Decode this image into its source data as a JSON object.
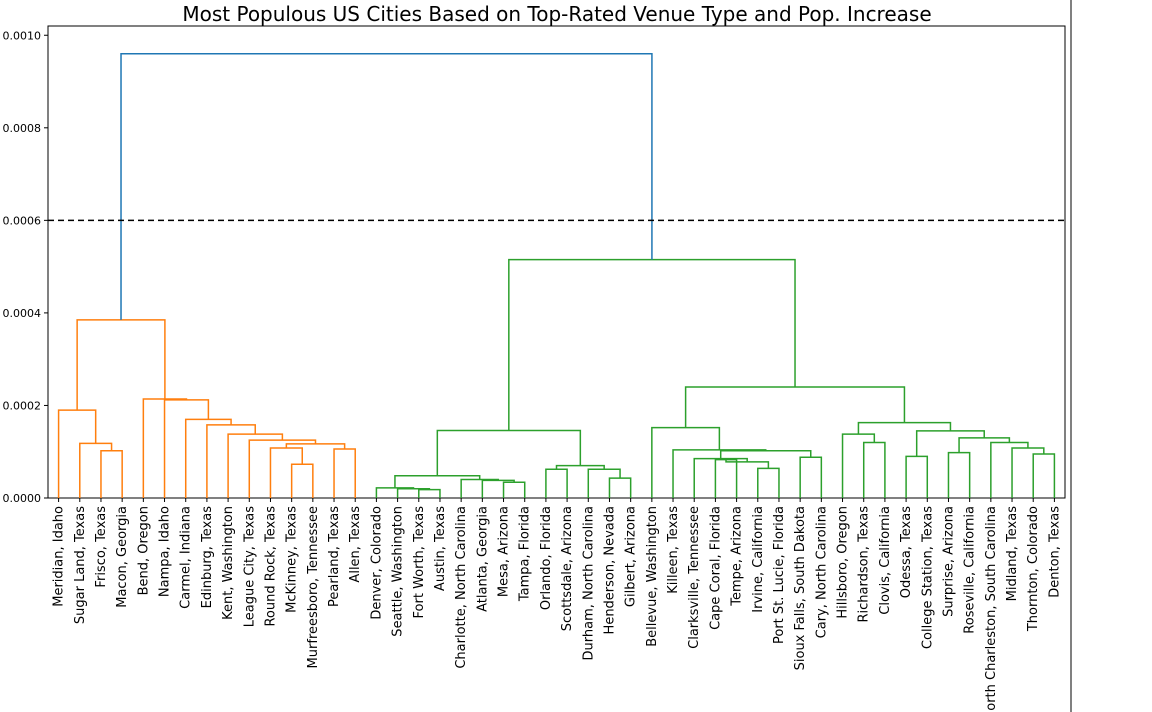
{
  "chart_data": {
    "type": "dendrogram",
    "title": "Most Populous US Cities Based on Top-Rated Venue Type and Pop. Increase",
    "xlabel": "",
    "ylabel": "",
    "ylim": [
      0,
      0.00102
    ],
    "yticks": [
      "0.0000",
      "0.0002",
      "0.0004",
      "0.0006",
      "0.0008",
      "0.0010"
    ],
    "ytick_values": [
      0,
      0.0002,
      0.0004,
      0.0006,
      0.0008,
      0.001
    ],
    "threshold": 0.0006,
    "threshold_style": "dashed black",
    "grid": false,
    "colors": {
      "root": "#1f77b4",
      "cluster1": "#ff7f0e",
      "cluster2": "#2ca02c",
      "threshold": "#000000"
    },
    "leaves": [
      "Meridian, Idaho",
      "Sugar Land, Texas",
      "Frisco, Texas",
      "Macon, Georgia",
      "Bend, Oregon",
      "Nampa, Idaho",
      "Carmel, Indiana",
      "Edinburg, Texas",
      "Kent, Washington",
      "League City, Texas",
      "Round Rock, Texas",
      "McKinney, Texas",
      "Murfreesboro, Tennessee",
      "Pearland, Texas",
      "Allen, Texas",
      "Denver, Colorado",
      "Seattle, Washington",
      "Fort Worth, Texas",
      "Austin, Texas",
      "Charlotte, North Carolina",
      "Atlanta, Georgia",
      "Mesa, Arizona",
      "Tampa, Florida",
      "Orlando, Florida",
      "Scottsdale, Arizona",
      "Durham, North Carolina",
      "Henderson, Nevada",
      "Gilbert, Arizona",
      "Bellevue, Washington",
      "Killeen, Texas",
      "Clarksville, Tennessee",
      "Cape Coral, Florida",
      "Tempe, Arizona",
      "Irvine, California",
      "Port St. Lucie, Florida",
      "Sioux Falls, South Dakota",
      "Cary, North Carolina",
      "Hillsboro, Oregon",
      "Richardson, Texas",
      "Clovis, California",
      "Odessa, Texas",
      "College Station, Texas",
      "Surprise, Arizona",
      "Roseville, California",
      "North Charleston, South Carolina",
      "Midland, Texas",
      "Thornton, Colorado",
      "Denton, Texas"
    ],
    "merges": [
      {
        "l": 2,
        "r": 3,
        "h": 0.000102,
        "c": "cluster1"
      },
      {
        "l": 1,
        "r": "m0",
        "h": 0.000118,
        "c": "cluster1"
      },
      {
        "l": 0,
        "r": "m1",
        "h": 0.00019,
        "c": "cluster1"
      },
      {
        "l": 11,
        "r": 12,
        "h": 7.3e-05,
        "c": "cluster1"
      },
      {
        "l": 10,
        "r": "m3",
        "h": 0.000108,
        "c": "cluster1"
      },
      {
        "l": 13,
        "r": 14,
        "h": 0.000106,
        "c": "cluster1"
      },
      {
        "l": "m4",
        "r": "m5",
        "h": 0.000117,
        "c": "cluster1"
      },
      {
        "l": "m6",
        "r": 9,
        "h": 0.000125,
        "c": "cluster1"
      },
      {
        "l": 8,
        "r": "m7",
        "h": 0.000138,
        "c": "cluster1"
      },
      {
        "l": 7,
        "r": "m8",
        "h": 0.000158,
        "c": "cluster1"
      },
      {
        "l": 6,
        "r": "m9",
        "h": 0.00017,
        "c": "cluster1"
      },
      {
        "l": 5,
        "r": "m10",
        "h": 0.000212,
        "c": "cluster1"
      },
      {
        "l": 4,
        "r": "m11",
        "h": 0.000214,
        "c": "cluster1"
      },
      {
        "l": "m2",
        "r": "m12",
        "h": 0.000385,
        "c": "cluster1"
      },
      {
        "l": 17,
        "r": 18,
        "h": 1.8e-05,
        "c": "cluster2"
      },
      {
        "l": 16,
        "r": "m14",
        "h": 2e-05,
        "c": "cluster2"
      },
      {
        "l": 15,
        "r": "m15",
        "h": 2.2e-05,
        "c": "cluster2"
      },
      {
        "l": 21,
        "r": 22,
        "h": 3.4e-05,
        "c": "cluster2"
      },
      {
        "l": 20,
        "r": "m17",
        "h": 3.8e-05,
        "c": "cluster2"
      },
      {
        "l": 19,
        "r": "m18",
        "h": 4e-05,
        "c": "cluster2"
      },
      {
        "l": "m16",
        "r": "m19",
        "h": 4.8e-05,
        "c": "cluster2"
      },
      {
        "l": 23,
        "r": 24,
        "h": 6.2e-05,
        "c": "cluster2"
      },
      {
        "l": 26,
        "r": 27,
        "h": 4.3e-05,
        "c": "cluster2"
      },
      {
        "l": 25,
        "r": "m22",
        "h": 6.2e-05,
        "c": "cluster2"
      },
      {
        "l": "m21",
        "r": "m23",
        "h": 7e-05,
        "c": "cluster2"
      },
      {
        "l": "m20",
        "r": "m24",
        "h": 0.000146,
        "c": "cluster2"
      },
      {
        "l": 31,
        "r": 32,
        "h": 8.3e-05,
        "c": "cluster2"
      },
      {
        "l": 33,
        "r": 34,
        "h": 6.4e-05,
        "c": "cluster2"
      },
      {
        "l": "m26",
        "r": "m27",
        "h": 7.8e-05,
        "c": "cluster2"
      },
      {
        "l": 30,
        "r": "m28",
        "h": 8.5e-05,
        "c": "cluster2"
      },
      {
        "l": 35,
        "r": 36,
        "h": 8.8e-05,
        "c": "cluster2"
      },
      {
        "l": "m29",
        "r": "m30",
        "h": 0.000102,
        "c": "cluster2"
      },
      {
        "l": 29,
        "r": "m31",
        "h": 0.000104,
        "c": "cluster2"
      },
      {
        "l": 28,
        "r": "m32",
        "h": 0.000152,
        "c": "cluster2"
      },
      {
        "l": 38,
        "r": 39,
        "h": 0.00012,
        "c": "cluster2"
      },
      {
        "l": 37,
        "r": "m34",
        "h": 0.000138,
        "c": "cluster2"
      },
      {
        "l": 46,
        "r": 47,
        "h": 9.5e-05,
        "c": "cluster2"
      },
      {
        "l": 45,
        "r": "m36",
        "h": 0.000108,
        "c": "cluster2"
      },
      {
        "l": 44,
        "r": "m37",
        "h": 0.00012,
        "c": "cluster2"
      },
      {
        "l": 42,
        "r": 43,
        "h": 9.8e-05,
        "c": "cluster2"
      },
      {
        "l": "m39",
        "r": "m38",
        "h": 0.00013,
        "c": "cluster2"
      },
      {
        "l": 40,
        "r": 41,
        "h": 9e-05,
        "c": "cluster2"
      },
      {
        "l": "m41",
        "r": "m40",
        "h": 0.000145,
        "c": "cluster2"
      },
      {
        "l": "m35",
        "r": "m42",
        "h": 0.000163,
        "c": "cluster2"
      },
      {
        "l": "m33",
        "r": "m43",
        "h": 0.00024,
        "c": "cluster2"
      },
      {
        "l": "m25",
        "r": "m44",
        "h": 0.000515,
        "c": "cluster2"
      },
      {
        "l": "m13",
        "r": "m45",
        "h": 0.00096,
        "c": "root"
      }
    ]
  }
}
